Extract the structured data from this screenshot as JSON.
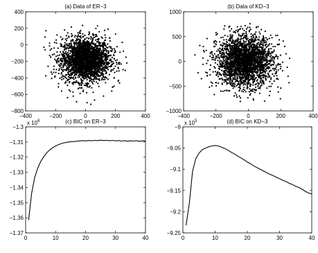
{
  "chart_data": [
    {
      "type": "scatter",
      "title": "(a) Data of ER−3",
      "xlim": [
        -400,
        400
      ],
      "ylim": [
        -800,
        400
      ],
      "xticks": [
        -400,
        -200,
        0,
        200,
        400
      ],
      "yticks": [
        -800,
        -600,
        -400,
        -200,
        0,
        200,
        400
      ],
      "xtick_labels": [
        "−400",
        "−200",
        "0",
        "200",
        "400"
      ],
      "ytick_labels": [
        "−800",
        "−600",
        "−400",
        "−200",
        "0",
        "200",
        "400"
      ],
      "distribution": {
        "center": [
          0,
          -180
        ],
        "spread": [
          80,
          130
        ],
        "extent": [
          [
            -280,
            280
          ],
          [
            -680,
            230
          ]
        ]
      },
      "points": [
        [
          -265,
          170
        ],
        [
          -240,
          20
        ],
        [
          -220,
          -120
        ],
        [
          -250,
          -260
        ],
        [
          -205,
          -390
        ],
        [
          -190,
          120
        ],
        [
          -160,
          -560
        ],
        [
          -120,
          -640
        ],
        [
          -60,
          -690
        ],
        [
          10,
          -700
        ],
        [
          60,
          -670
        ],
        [
          120,
          -620
        ],
        [
          175,
          -560
        ],
        [
          220,
          -430
        ],
        [
          250,
          -300
        ],
        [
          270,
          -150
        ],
        [
          245,
          30
        ],
        [
          200,
          130
        ],
        [
          150,
          190
        ],
        [
          80,
          230
        ],
        [
          -20,
          235
        ],
        [
          -95,
          215
        ],
        [
          -180,
          -470
        ],
        [
          230,
          -90
        ],
        [
          -270,
          -60
        ],
        [
          35,
          -720
        ],
        [
          -140,
          180
        ],
        [
          190,
          -500
        ],
        [
          275,
          -220
        ],
        [
          -230,
          -330
        ]
      ]
    },
    {
      "type": "scatter",
      "title": "(b) Data of KD−3",
      "xlim": [
        -400,
        400
      ],
      "ylim": [
        -1000,
        1000
      ],
      "xticks": [
        -400,
        -200,
        0,
        200,
        400
      ],
      "yticks": [
        -1000,
        -500,
        0,
        500,
        1000
      ],
      "xtick_labels": [
        "−400",
        "−200",
        "0",
        "200",
        "400"
      ],
      "ytick_labels": [
        "−1000",
        "−500",
        "0",
        "500",
        "1000"
      ],
      "distribution": {
        "center": [
          -20,
          0
        ],
        "spread": [
          85,
          250
        ],
        "extent": [
          [
            -330,
            260
          ],
          [
            -820,
            720
          ]
        ]
      },
      "points": [
        [
          -330,
          130
        ],
        [
          -300,
          320
        ],
        [
          -280,
          -60
        ],
        [
          -310,
          -230
        ],
        [
          -255,
          460
        ],
        [
          -230,
          -420
        ],
        [
          -200,
          580
        ],
        [
          -170,
          -600
        ],
        [
          -120,
          690
        ],
        [
          -70,
          -720
        ],
        [
          -20,
          720
        ],
        [
          30,
          -760
        ],
        [
          80,
          640
        ],
        [
          130,
          -690
        ],
        [
          170,
          520
        ],
        [
          200,
          -540
        ],
        [
          225,
          300
        ],
        [
          245,
          -300
        ],
        [
          255,
          60
        ],
        [
          240,
          -120
        ],
        [
          -290,
          -350
        ],
        [
          -150,
          650
        ],
        [
          100,
          -800
        ],
        [
          60,
          700
        ],
        [
          -260,
          220
        ],
        [
          185,
          -620
        ],
        [
          -50,
          -810
        ],
        [
          215,
          410
        ],
        [
          -240,
          -520
        ],
        [
          10,
          760
        ]
      ]
    },
    {
      "type": "line",
      "title": "(c) BIC on ER−3",
      "xlim": [
        0,
        40
      ],
      "ylim": [
        -1.37,
        -1.3
      ],
      "xticks": [
        0,
        10,
        20,
        30,
        40
      ],
      "yticks": [
        -1.37,
        -1.36,
        -1.35,
        -1.34,
        -1.33,
        -1.32,
        -1.31,
        -1.3
      ],
      "xtick_labels": [
        "0",
        "10",
        "20",
        "30",
        "40"
      ],
      "ytick_labels": [
        "−1.37",
        "−1.36",
        "−1.35",
        "−1.34",
        "−1.33",
        "−1.32",
        "−1.31",
        "−1.3"
      ],
      "scale_exponent_label": [
        "x 10",
        "6"
      ],
      "x": [
        1,
        2,
        3,
        4,
        5,
        6,
        7,
        8,
        9,
        10,
        11,
        12,
        13,
        14,
        15,
        16,
        17,
        18,
        19,
        20,
        21,
        22,
        23,
        24,
        25,
        26,
        27,
        28,
        29,
        30,
        31,
        32,
        33,
        34,
        35,
        36,
        37,
        38,
        39,
        40
      ],
      "values": [
        -1.3615,
        -1.344,
        -1.3335,
        -1.3275,
        -1.323,
        -1.3198,
        -1.3172,
        -1.3153,
        -1.3138,
        -1.3126,
        -1.3117,
        -1.311,
        -1.3105,
        -1.3101,
        -1.3098,
        -1.3097,
        -1.3095,
        -1.3093,
        -1.3091,
        -1.3093,
        -1.309,
        -1.3092,
        -1.3089,
        -1.3091,
        -1.3088,
        -1.309,
        -1.3089,
        -1.3092,
        -1.3089,
        -1.3093,
        -1.309,
        -1.3094,
        -1.3091,
        -1.3095,
        -1.3092,
        -1.3094,
        -1.3091,
        -1.3095,
        -1.3093,
        -1.3094
      ]
    },
    {
      "type": "line",
      "title": "(d) BIC on KD−3",
      "xlim": [
        0,
        40
      ],
      "ylim": [
        -9.25,
        -9
      ],
      "xticks": [
        0,
        10,
        20,
        30,
        40
      ],
      "yticks": [
        -9.25,
        -9.2,
        -9.15,
        -9.1,
        -9.05,
        -9
      ],
      "xtick_labels": [
        "0",
        "10",
        "20",
        "30",
        "40"
      ],
      "ytick_labels": [
        "−9.25",
        "−9.2",
        "−9.15",
        "−9.1",
        "−9.05",
        "−9"
      ],
      "scale_exponent_label": [
        "x 10",
        "5"
      ],
      "x": [
        1,
        2,
        3,
        4,
        5,
        6,
        7,
        8,
        9,
        10,
        11,
        12,
        13,
        14,
        15,
        16,
        17,
        18,
        19,
        20,
        21,
        22,
        23,
        24,
        25,
        26,
        27,
        28,
        29,
        30,
        31,
        32,
        33,
        34,
        35,
        36,
        37,
        38,
        39,
        40
      ],
      "values": [
        -9.232,
        -9.18,
        -9.105,
        -9.075,
        -9.062,
        -9.054,
        -9.05,
        -9.047,
        -9.045,
        -9.044,
        -9.045,
        -9.048,
        -9.051,
        -9.055,
        -9.06,
        -9.064,
        -9.069,
        -9.073,
        -9.078,
        -9.083,
        -9.087,
        -9.092,
        -9.096,
        -9.1,
        -9.104,
        -9.108,
        -9.112,
        -9.115,
        -9.119,
        -9.122,
        -9.126,
        -9.129,
        -9.133,
        -9.136,
        -9.14,
        -9.143,
        -9.147,
        -9.152,
        -9.156,
        -9.158
      ]
    }
  ]
}
